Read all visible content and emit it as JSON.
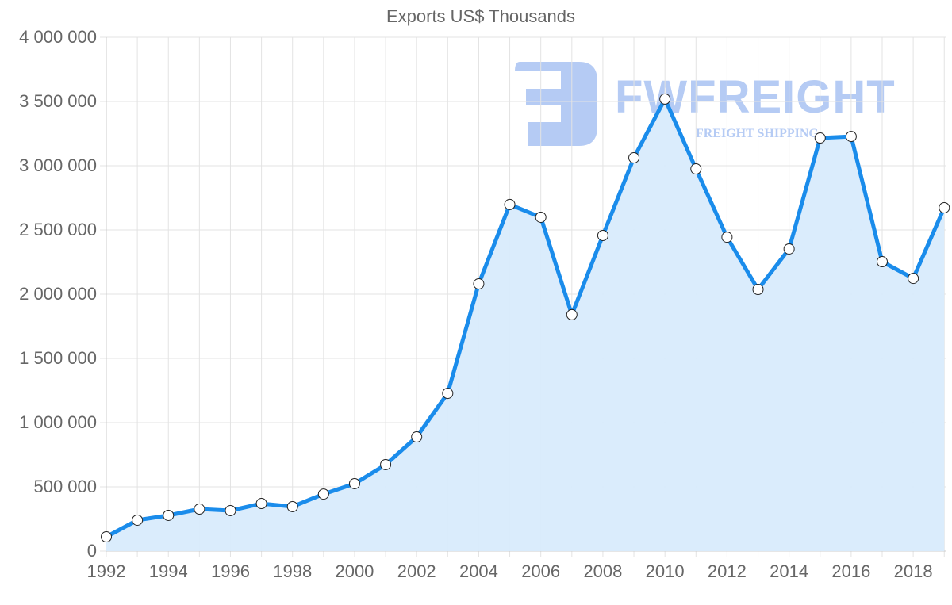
{
  "chart": {
    "title": "Exports US$ Thousands",
    "y_tick_labels": [
      "0",
      "500 000",
      "1 000 000",
      "1 500 000",
      "2 000 000",
      "2 500 000",
      "3 000 000",
      "3 500 000",
      "4 000 000"
    ],
    "x_tick_labels": [
      "1992",
      "1994",
      "1996",
      "1998",
      "2000",
      "2002",
      "2004",
      "2006",
      "2008",
      "2010",
      "2012",
      "2014",
      "2016",
      "2018"
    ],
    "colors": {
      "line": "#1a8ceb",
      "fill": "#d8ebfc",
      "grid": "#e3e3e3",
      "axis": "#cccccc",
      "tick_text": "#666666",
      "point_fill": "#ffffff",
      "point_stroke": "#222222"
    }
  },
  "watermark": {
    "brand": "FWFREIGHT",
    "subtitle": "FREIGHT SHIPPING",
    "color": "#a9c4f1"
  },
  "chart_data": {
    "type": "area",
    "title": "Exports US$ Thousands",
    "xlabel": "",
    "ylabel": "",
    "ylim": [
      0,
      4000000
    ],
    "grid": true,
    "legend": "none",
    "x": [
      1992,
      1993,
      1994,
      1995,
      1996,
      1997,
      1998,
      1999,
      2000,
      2001,
      2002,
      2003,
      2004,
      2005,
      2006,
      2007,
      2008,
      2009,
      2010,
      2011,
      2012,
      2013,
      2014,
      2015,
      2016,
      2017,
      2018,
      2019
    ],
    "series": [
      {
        "name": "Exports US$ Thousands",
        "values": [
          111000,
          241000,
          278000,
          327000,
          315000,
          370000,
          346000,
          444000,
          525000,
          673000,
          889000,
          1228000,
          2080000,
          2698000,
          2599000,
          1840000,
          2457000,
          3062000,
          3519000,
          2975000,
          2444000,
          2037000,
          2352000,
          3216000,
          3228000,
          2253000,
          2123000,
          2673000
        ]
      }
    ],
    "x_ticks": [
      "1992",
      "1994",
      "1996",
      "1998",
      "2000",
      "2002",
      "2004",
      "2006",
      "2008",
      "2010",
      "2012",
      "2014",
      "2016",
      "2018"
    ],
    "y_ticks": [
      0,
      500000,
      1000000,
      1500000,
      2000000,
      2500000,
      3000000,
      3500000,
      4000000
    ]
  }
}
